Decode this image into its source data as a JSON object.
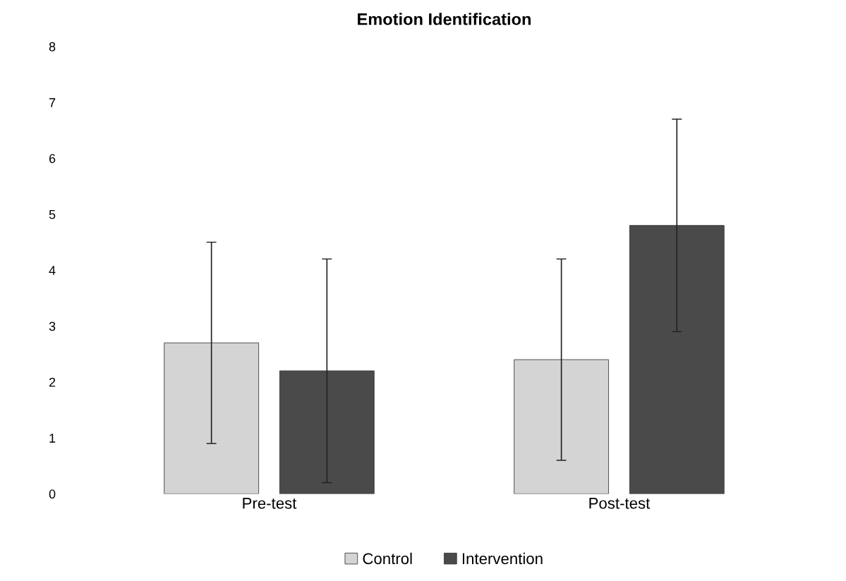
{
  "chart_data": {
    "type": "bar",
    "title": "Emotion Identification",
    "categories": [
      "Pre-test",
      "Post-test"
    ],
    "series": [
      {
        "name": "Control",
        "color": "#d4d4d4",
        "values": [
          2.7,
          2.4
        ],
        "errors": [
          1.8,
          1.8
        ]
      },
      {
        "name": "Intervention",
        "color": "#4a4a4a",
        "values": [
          2.2,
          4.8
        ],
        "errors": [
          2.0,
          1.9
        ]
      }
    ],
    "ylim": [
      0,
      8
    ],
    "yticks": [
      0,
      1,
      2,
      3,
      4,
      5,
      6,
      7,
      8
    ],
    "grid": false,
    "legend": "bottom"
  }
}
